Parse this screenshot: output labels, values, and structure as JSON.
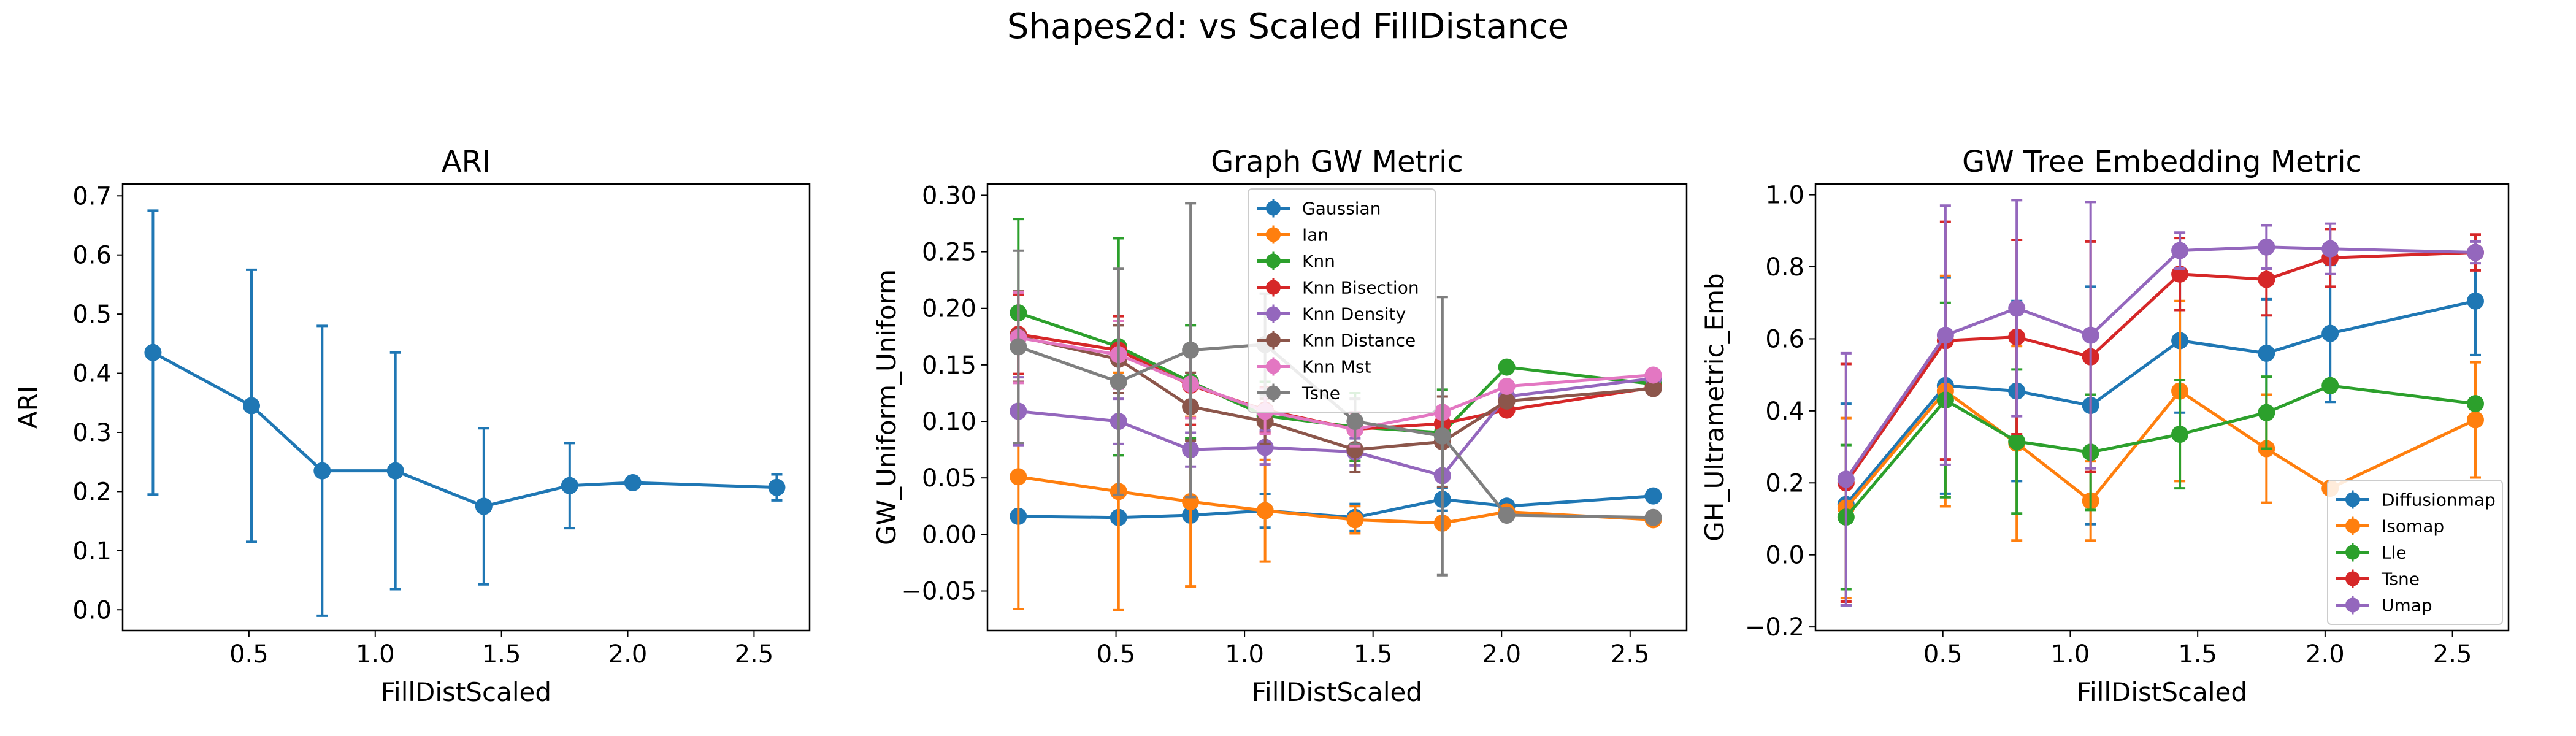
{
  "figure": {
    "suptitle": "Shapes2d: vs Scaled FillDistance"
  },
  "chart_data": [
    {
      "type": "line",
      "title": "ARI",
      "xlabel": "FillDistScaled",
      "ylabel": "ARI",
      "xlim": [
        0.0,
        2.72
      ],
      "ylim": [
        -0.035,
        0.72
      ],
      "xticks": [
        0.5,
        1.0,
        1.5,
        2.0,
        2.5
      ],
      "xtick_labels": [
        "0.5",
        "1.0",
        "1.5",
        "2.0",
        "2.5"
      ],
      "yticks": [
        0.0,
        0.1,
        0.2,
        0.3,
        0.4,
        0.5,
        0.6,
        0.7
      ],
      "ytick_labels": [
        "0.0",
        "0.1",
        "0.2",
        "0.3",
        "0.4",
        "0.5",
        "0.6",
        "0.7"
      ],
      "legend": null,
      "series": [
        {
          "color": "#1f77b4",
          "x": [
            0.12,
            0.51,
            0.79,
            1.08,
            1.43,
            1.77,
            2.02,
            2.59
          ],
          "y": [
            0.435,
            0.345,
            0.235,
            0.235,
            0.175,
            0.21,
            0.215,
            0.207
          ],
          "err": [
            0.24,
            0.23,
            0.245,
            0.2,
            0.132,
            0.072,
            0.0,
            0.022
          ]
        }
      ]
    },
    {
      "type": "line",
      "title": "Graph GW Metric",
      "xlabel": "FillDistScaled",
      "ylabel": "GW_Uniform_Uniform",
      "xlim": [
        0.0,
        2.72
      ],
      "ylim": [
        -0.085,
        0.31
      ],
      "xticks": [
        0.5,
        1.0,
        1.5,
        2.0,
        2.5
      ],
      "xtick_labels": [
        "0.5",
        "1.0",
        "1.5",
        "2.0",
        "2.5"
      ],
      "yticks": [
        -0.05,
        0.0,
        0.05,
        0.1,
        0.15,
        0.2,
        0.25,
        0.3
      ],
      "ytick_labels": [
        "−0.05",
        "0.00",
        "0.05",
        "0.10",
        "0.15",
        "0.20",
        "0.25",
        "0.30"
      ],
      "legend": "upper-center",
      "series": [
        {
          "name": "Gaussian",
          "color": "#1f77b4",
          "x": [
            0.12,
            0.51,
            0.79,
            1.08,
            1.43,
            1.77,
            2.02,
            2.59
          ],
          "y": [
            0.016,
            0.015,
            0.017,
            0.021,
            0.015,
            0.031,
            0.025,
            0.034
          ],
          "err": [
            0.0,
            0.0,
            0.0,
            0.015,
            0.012,
            0.01,
            0.0,
            0.0
          ]
        },
        {
          "name": "Ian",
          "color": "#ff7f0e",
          "x": [
            0.12,
            0.51,
            0.79,
            1.08,
            1.43,
            1.77,
            2.02,
            2.59
          ],
          "y": [
            0.051,
            0.038,
            0.029,
            0.021,
            0.013,
            0.01,
            0.02,
            0.013
          ],
          "err": [
            0.117,
            0.105,
            0.075,
            0.045,
            0.012,
            0.0,
            0.0,
            0.0
          ]
        },
        {
          "name": "Knn",
          "color": "#2ca02c",
          "x": [
            0.12,
            0.51,
            0.79,
            1.08,
            1.43,
            1.77,
            2.02,
            2.59
          ],
          "y": [
            0.196,
            0.166,
            0.135,
            0.105,
            0.095,
            0.09,
            0.148,
            0.133
          ],
          "err": [
            0.083,
            0.096,
            0.05,
            0.03,
            0.03,
            0.038,
            0.0,
            0.0
          ]
        },
        {
          "name": "Knn Bisection",
          "color": "#d62728",
          "x": [
            0.12,
            0.51,
            0.79,
            1.08,
            1.43,
            1.77,
            2.02,
            2.59
          ],
          "y": [
            0.177,
            0.163,
            0.132,
            0.11,
            0.093,
            0.098,
            0.11,
            0.13
          ],
          "err": [
            0.035,
            0.03,
            0.035,
            0.02,
            0.015,
            0.0,
            0.0,
            0.0
          ]
        },
        {
          "name": "Knn Density",
          "color": "#9467bd",
          "x": [
            0.12,
            0.51,
            0.79,
            1.08,
            1.43,
            1.77,
            2.02,
            2.59
          ],
          "y": [
            0.109,
            0.1,
            0.075,
            0.077,
            0.073,
            0.052,
            0.122,
            0.138
          ],
          "err": [
            0.03,
            0.02,
            0.015,
            0.015,
            0.012,
            0.0,
            0.0,
            0.0
          ]
        },
        {
          "name": "Knn Distance",
          "color": "#8c564b",
          "x": [
            0.12,
            0.51,
            0.79,
            1.08,
            1.43,
            1.77,
            2.02,
            2.59
          ],
          "y": [
            0.175,
            0.155,
            0.113,
            0.1,
            0.075,
            0.082,
            0.118,
            0.129
          ],
          "err": [
            0.04,
            0.03,
            0.03,
            0.02,
            0.02,
            0.04,
            0.0,
            0.0
          ]
        },
        {
          "name": "Knn Mst",
          "color": "#e377c2",
          "x": [
            0.12,
            0.51,
            0.79,
            1.08,
            1.43,
            1.77,
            2.02,
            2.59
          ],
          "y": [
            0.174,
            0.159,
            0.133,
            0.109,
            0.093,
            0.108,
            0.131,
            0.141
          ],
          "err": [
            0.04,
            0.03,
            0.03,
            0.02,
            0.015,
            0.0,
            0.0,
            0.0
          ]
        },
        {
          "name": "Tsne",
          "color": "#7f7f7f",
          "x": [
            0.12,
            0.51,
            0.79,
            1.08,
            1.43,
            1.77,
            2.02,
            2.59
          ],
          "y": [
            0.166,
            0.135,
            0.163,
            0.168,
            0.1,
            0.087,
            0.017,
            0.015
          ],
          "err": [
            0.085,
            0.1,
            0.13,
            0.045,
            0.02,
            0.123,
            0.0,
            0.0
          ]
        }
      ]
    },
    {
      "type": "line",
      "title": "GW Tree Embedding Metric",
      "xlabel": "FillDistScaled",
      "ylabel": "GH_Ultrametric_Emb",
      "xlim": [
        0.0,
        2.72
      ],
      "ylim": [
        -0.21,
        1.03
      ],
      "xticks": [
        0.5,
        1.0,
        1.5,
        2.0,
        2.5
      ],
      "xtick_labels": [
        "0.5",
        "1.0",
        "1.5",
        "2.0",
        "2.5"
      ],
      "yticks": [
        -0.2,
        0.0,
        0.2,
        0.4,
        0.6,
        0.8,
        1.0
      ],
      "ytick_labels": [
        "−0.2",
        "0.0",
        "0.2",
        "0.4",
        "0.6",
        "0.8",
        "1.0"
      ],
      "legend": "lower-right",
      "series": [
        {
          "name": "Diffusionmap",
          "color": "#1f77b4",
          "x": [
            0.12,
            0.51,
            0.79,
            1.08,
            1.43,
            1.77,
            2.02,
            2.59
          ],
          "y": [
            0.14,
            0.47,
            0.455,
            0.415,
            0.595,
            0.56,
            0.615,
            0.705
          ],
          "err": [
            0.28,
            0.3,
            0.25,
            0.33,
            0.2,
            0.15,
            0.19,
            0.15
          ]
        },
        {
          "name": "Isomap",
          "color": "#ff7f0e",
          "x": [
            0.12,
            0.51,
            0.79,
            1.08,
            1.43,
            1.77,
            2.02,
            2.59
          ],
          "y": [
            0.13,
            0.455,
            0.31,
            0.15,
            0.455,
            0.295,
            0.185,
            0.375
          ],
          "err": [
            0.25,
            0.32,
            0.27,
            0.11,
            0.25,
            0.15,
            0.0,
            0.16
          ]
        },
        {
          "name": "Lle",
          "color": "#2ca02c",
          "x": [
            0.12,
            0.51,
            0.79,
            1.08,
            1.43,
            1.77,
            2.02,
            2.59
          ],
          "y": [
            0.105,
            0.43,
            0.315,
            0.285,
            0.335,
            0.395,
            0.47,
            0.42
          ],
          "err": [
            0.2,
            0.27,
            0.2,
            0.16,
            0.15,
            0.1,
            0.0,
            0.0
          ]
        },
        {
          "name": "Tsne",
          "color": "#d62728",
          "x": [
            0.12,
            0.51,
            0.79,
            1.08,
            1.43,
            1.77,
            2.02,
            2.59
          ],
          "y": [
            0.2,
            0.595,
            0.605,
            0.55,
            0.78,
            0.765,
            0.825,
            0.84
          ],
          "err": [
            0.33,
            0.33,
            0.27,
            0.32,
            0.1,
            0.1,
            0.08,
            0.05
          ]
        },
        {
          "name": "Umap",
          "color": "#9467bd",
          "x": [
            0.12,
            0.51,
            0.79,
            1.08,
            1.43,
            1.77,
            2.02,
            2.59
          ],
          "y": [
            0.21,
            0.61,
            0.685,
            0.61,
            0.845,
            0.855,
            0.85,
            0.84
          ],
          "err": [
            0.35,
            0.36,
            0.3,
            0.37,
            0.05,
            0.06,
            0.07,
            0.03
          ]
        }
      ]
    }
  ]
}
